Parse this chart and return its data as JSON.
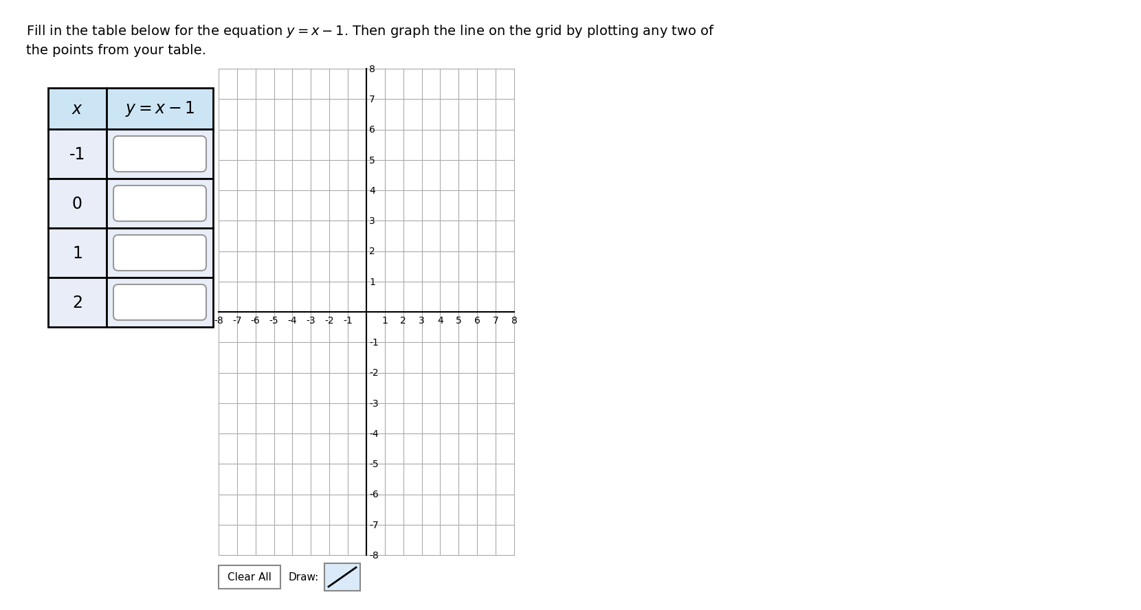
{
  "table_header_x": "$x$",
  "table_header_y": "$y = x - 1$",
  "table_x_vals": [
    "-1",
    "0",
    "1",
    "2"
  ],
  "header_bg": "#cce5f5",
  "row_bg": "#e8edf8",
  "table_border": "#000000",
  "grid_color": "#aaaaaa",
  "axis_color": "#000000",
  "bg_color": "#ffffff",
  "clear_all_text": "Clear All",
  "draw_text": "Draw:",
  "draw_icon_bg": "#daeaf8",
  "font_size_title": 14,
  "font_size_table_header": 17,
  "font_size_table_val": 17,
  "font_size_axis": 10,
  "inner_box_color": "#ffffff",
  "inner_box_edge": "#999999"
}
